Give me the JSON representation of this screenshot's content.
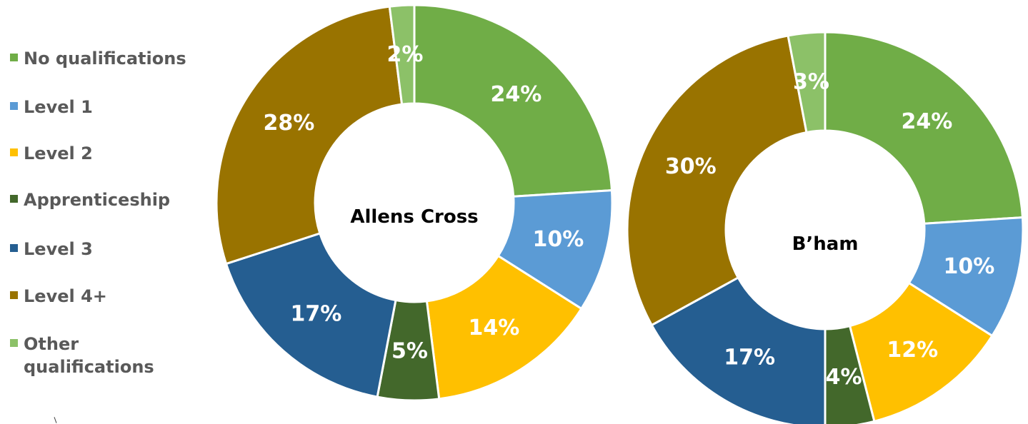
{
  "chart_data": [
    {
      "type": "pie",
      "donut": true,
      "center_label": "Allens Cross",
      "categories": [
        "No qualifications",
        "Level 1",
        "Level 2",
        "Apprenticeship",
        "Level 3",
        "Level 4+",
        "Other qualifications"
      ],
      "values": [
        24,
        10,
        14,
        5,
        17,
        28,
        2
      ],
      "value_labels": [
        "24%",
        "10%",
        "14%",
        "5%",
        "17%",
        "28%",
        "2%"
      ]
    },
    {
      "type": "pie",
      "donut": true,
      "center_label": "B’ham",
      "categories": [
        "No qualifications",
        "Level 1",
        "Level 2",
        "Apprenticeship",
        "Level 3",
        "Level 4+",
        "Other qualifications"
      ],
      "values": [
        24,
        10,
        12,
        4,
        17,
        30,
        3
      ],
      "value_labels": [
        "24%",
        "10%",
        "12%",
        "4%",
        "17%",
        "30%",
        "3%"
      ]
    }
  ],
  "legend": {
    "placement": "left",
    "items": [
      {
        "label": "No qualifications",
        "color": "#70AD47"
      },
      {
        "label": "Level 1",
        "color": "#5B9BD5"
      },
      {
        "label": "Level 2",
        "color": "#FFC000"
      },
      {
        "label": "Apprenticeship",
        "color": "#43682B"
      },
      {
        "label": "Level 3",
        "color": "#255E91"
      },
      {
        "label": "Level 4+",
        "color": "#997300"
      },
      {
        "label": "Other\nqualifications",
        "color": "#8CC168"
      }
    ]
  }
}
